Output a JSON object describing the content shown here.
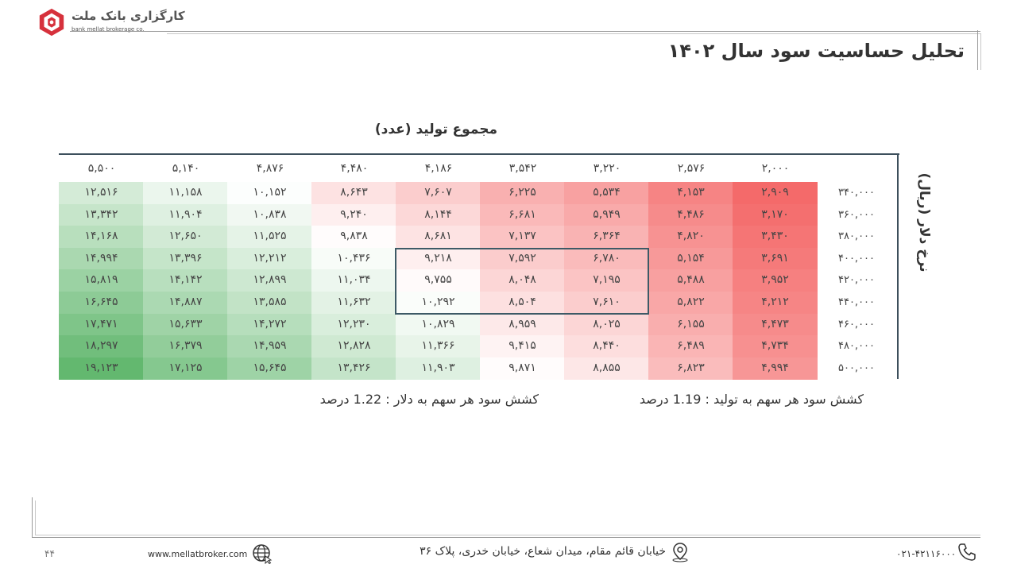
{
  "brand": {
    "name_fa": "کارگزاری بانک ملت",
    "name_en": "bank mellat brokerage co."
  },
  "slide": {
    "title": "تحلیل حساسیت سود سال ۱۴۰۲",
    "production_label": "مجموع تولید (عدد)",
    "dollar_label": "نرخ دلار (ریال)",
    "note_production": "کشش سود هر سهم به تولید : 1.19 درصد",
    "note_dollar": "کشش سود هر سهم به دلار : 1.22 درصد"
  },
  "chart_data": {
    "type": "heatmap",
    "xlabel": "مجموع تولید (عدد)",
    "ylabel": "نرخ دلار (ریال)",
    "columns": [
      "۵,۵۰۰",
      "۵,۱۴۰",
      "۴,۸۷۶",
      "۴,۴۸۰",
      "۴,۱۸۶",
      "۳,۵۴۲",
      "۳,۲۲۰",
      "۲,۵۷۶",
      "۲,۰۰۰"
    ],
    "rows": [
      "۳۴۰,۰۰۰",
      "۳۶۰,۰۰۰",
      "۳۸۰,۰۰۰",
      "۴۰۰,۰۰۰",
      "۴۲۰,۰۰۰",
      "۴۴۰,۰۰۰",
      "۴۶۰,۰۰۰",
      "۴۸۰,۰۰۰",
      "۵۰۰,۰۰۰"
    ],
    "values": [
      [
        12516,
        11158,
        10152,
        8643,
        7607,
        6225,
        5534,
        4153,
        2909
      ],
      [
        13342,
        11904,
        10838,
        9240,
        8144,
        6681,
        5949,
        4486,
        3170
      ],
      [
        14168,
        12650,
        11525,
        9838,
        8681,
        7137,
        6364,
        4820,
        3430
      ],
      [
        14994,
        13396,
        12212,
        10436,
        9218,
        7592,
        6780,
        5154,
        3691
      ],
      [
        15819,
        14142,
        12899,
        11034,
        9755,
        8048,
        7195,
        5488,
        3952
      ],
      [
        16645,
        14887,
        13585,
        11632,
        10292,
        8504,
        7610,
        5822,
        4212
      ],
      [
        17471,
        15633,
        14272,
        12230,
        10829,
        8959,
        8025,
        6155,
        4473
      ],
      [
        18297,
        16379,
        14959,
        12828,
        11366,
        9415,
        8440,
        6489,
        4734
      ],
      [
        19123,
        17125,
        15645,
        13426,
        11903,
        9871,
        8855,
        6823,
        4994
      ]
    ],
    "color_low": "#f46a6a",
    "color_mid": "#ffffff",
    "color_high": "#63b86f",
    "highlight": {
      "rows": [
        3,
        5
      ],
      "cols": [
        4,
        6
      ]
    }
  },
  "footer": {
    "page": "۴۴",
    "website": "www.mellatbroker.com",
    "address": "خیابان قائم مقام، میدان شعاع، خیابان خدری، پلاک ۳۶",
    "phone": "۰۲۱-۴۲۱۱۶۰۰۰"
  }
}
